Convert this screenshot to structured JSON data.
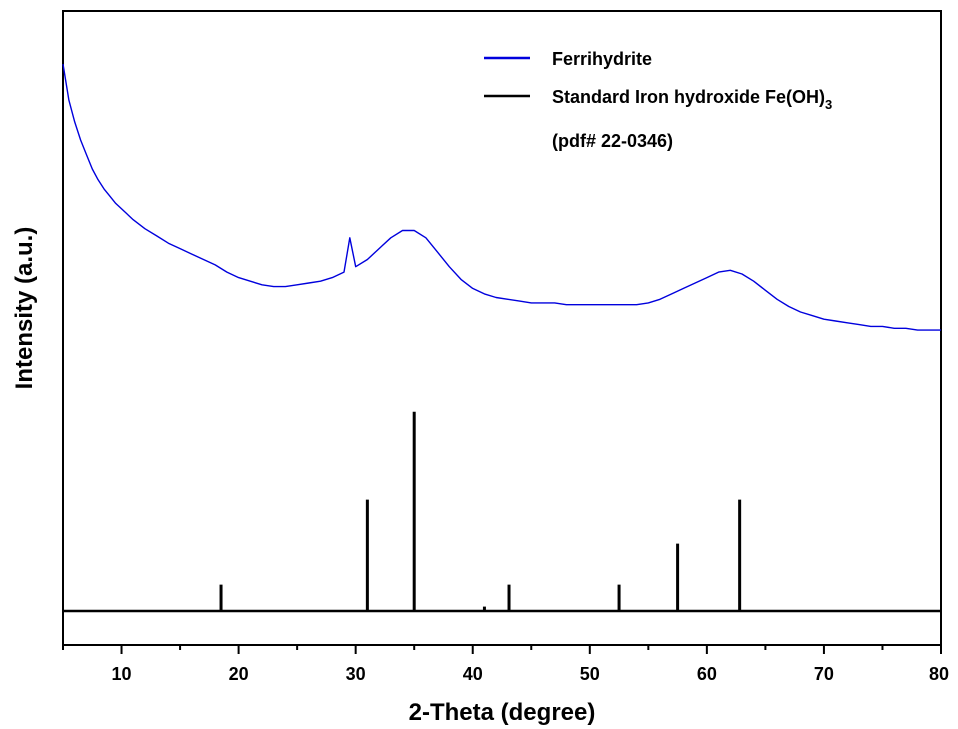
{
  "chart_data": {
    "type": "line",
    "title": "",
    "xlabel": "2-Theta (degree)",
    "ylabel": "Intensity (a.u.)",
    "xlim": [
      5,
      80
    ],
    "xticks": [
      10,
      20,
      30,
      40,
      50,
      60,
      70,
      80
    ],
    "y_ticks_shown": false,
    "grid": false,
    "legend_position": "top-right",
    "legend": [
      {
        "label": "Ferrihydrite",
        "color": "#0000dd"
      },
      {
        "label": "Standard Iron hydroxide Fe(OH)",
        "subscript": "3",
        "color": "#000000"
      },
      {
        "label": "(pdf# 22-0346)",
        "color": "#000000"
      }
    ],
    "series": [
      {
        "name": "Ferrihydrite",
        "color": "#0000dd",
        "kind": "line",
        "x": [
          5,
          5.5,
          6,
          6.5,
          7,
          7.5,
          8,
          8.5,
          9,
          9.5,
          10,
          11,
          12,
          13,
          14,
          15,
          16,
          17,
          18,
          19,
          20,
          21,
          22,
          23,
          24,
          25,
          26,
          27,
          28,
          29,
          29.5,
          30,
          31,
          32,
          33,
          34,
          35,
          36,
          37,
          38,
          39,
          40,
          41,
          42,
          43,
          44,
          45,
          46,
          47,
          48,
          49,
          50,
          51,
          52,
          53,
          54,
          55,
          56,
          57,
          58,
          59,
          60,
          61,
          62,
          63,
          64,
          65,
          66,
          67,
          68,
          69,
          70,
          71,
          72,
          73,
          74,
          75,
          76,
          77,
          78,
          79,
          80
        ],
        "y": [
          100,
          90,
          84,
          79,
          75,
          71,
          68,
          65.5,
          63.5,
          61.5,
          60,
          57,
          54.5,
          52.5,
          50.5,
          49,
          47.5,
          46,
          44.5,
          42.5,
          41,
          40,
          39,
          38.5,
          38.5,
          39,
          39.5,
          40,
          41,
          42.5,
          52,
          44,
          46,
          49,
          52,
          54,
          54,
          52,
          48,
          44,
          40.5,
          38,
          36.5,
          35.5,
          35,
          34.5,
          34,
          34,
          34,
          33.5,
          33.5,
          33.5,
          33.5,
          33.5,
          33.5,
          33.5,
          34,
          35,
          36.5,
          38,
          39.5,
          41,
          42.5,
          43,
          42,
          40,
          37.5,
          35,
          33,
          31.5,
          30.5,
          29.5,
          29,
          28.5,
          28,
          27.5,
          27.5,
          27,
          27,
          26.5,
          26.5,
          26.5
        ]
      },
      {
        "name": "Standard Iron hydroxide Fe(OH)3",
        "color": "#000000",
        "kind": "stick",
        "x": [
          18.5,
          31.0,
          35.0,
          41.0,
          43.1,
          52.5,
          57.5,
          62.8
        ],
        "y": [
          9,
          38,
          68,
          1.5,
          9,
          9,
          23,
          38
        ]
      }
    ]
  }
}
